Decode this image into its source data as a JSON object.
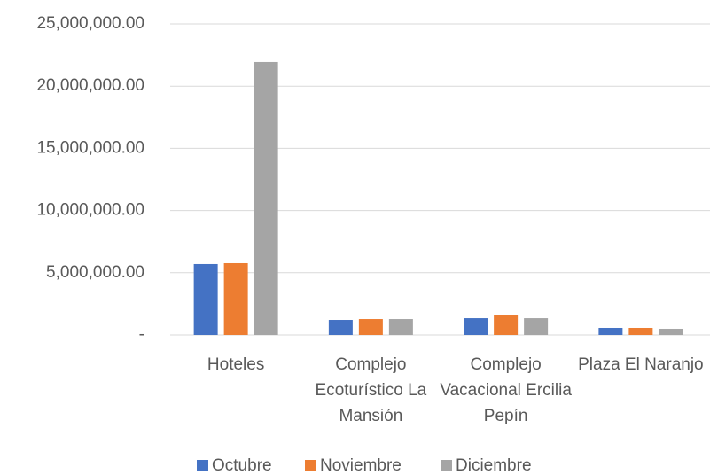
{
  "chart_data": {
    "type": "bar",
    "categories": [
      "Hoteles",
      "Complejo Ecoturístico La Mansión",
      "Complejo Vacacional Ercilia Pepín",
      "Plaza El Naranjo"
    ],
    "series": [
      {
        "name": "Octubre",
        "color": "#4472c4",
        "values": [
          5700000,
          1210000,
          1350000,
          570000
        ]
      },
      {
        "name": "Noviembre",
        "color": "#ed7d31",
        "values": [
          5770000,
          1280000,
          1570000,
          570000
        ]
      },
      {
        "name": "Diciembre",
        "color": "#a5a5a5",
        "values": [
          21940000,
          1280000,
          1350000,
          500000
        ]
      }
    ],
    "ylim": [
      0,
      25000000
    ],
    "yticks": [
      {
        "value": 0,
        "label": "-"
      },
      {
        "value": 5000000,
        "label": "5,000,000.00"
      },
      {
        "value": 10000000,
        "label": "10,000,000.00"
      },
      {
        "value": 15000000,
        "label": "15,000,000.00"
      },
      {
        "value": 20000000,
        "label": "20,000,000.00"
      },
      {
        "value": 25000000,
        "label": "25,000,000.00"
      }
    ],
    "grid": true,
    "legend": "bottom"
  }
}
